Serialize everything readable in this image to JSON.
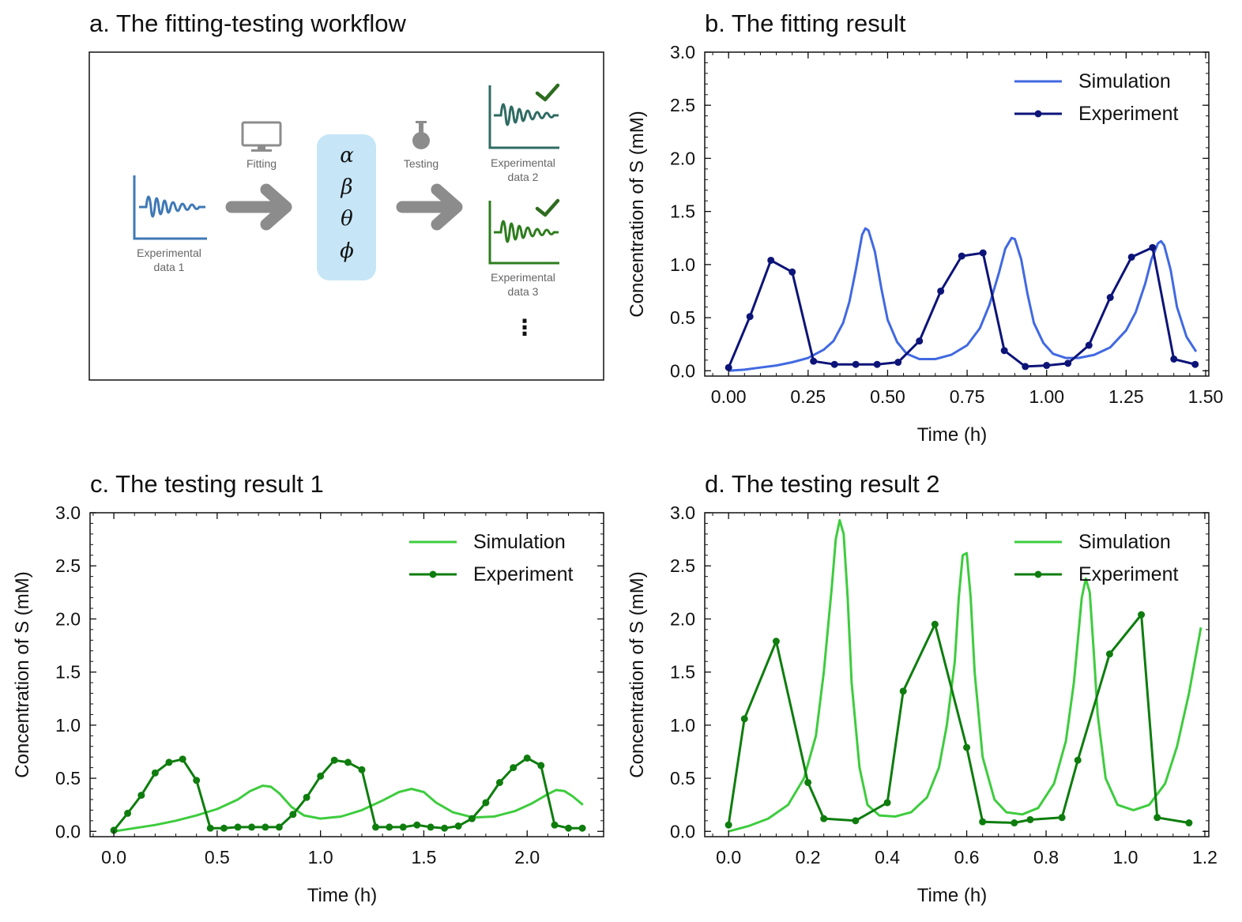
{
  "workflow": {
    "title": "a. The fitting-testing workflow",
    "fitting_label": "Fitting",
    "testing_label": "Testing",
    "data1_label": [
      "Experimental",
      "data 1"
    ],
    "data2_label": [
      "Experimental",
      "data 2"
    ],
    "data3_label": [
      "Experimental",
      "data 3"
    ],
    "params": [
      "α",
      "β",
      "θ",
      "ϕ"
    ],
    "ellipsis": "⋮",
    "icons": [
      "monitor-icon",
      "flask-icon",
      "arrow-icon",
      "checkmark-icon",
      "waveform-icon"
    ],
    "colors": {
      "param_box": "#c6e6f7",
      "arrow": "#8c8c8c",
      "data1": "#3f78b5",
      "data2": "#2f6b63",
      "data3": "#2e7d1e",
      "check": "#2e6b1f"
    }
  },
  "chart_data": [
    {
      "id": "b",
      "type": "line",
      "title": "b. The fitting result",
      "xlabel": "Time (h)",
      "ylabel": "Concentration of S (mM)",
      "xlim": [
        -0.075,
        1.51
      ],
      "ylim": [
        -0.05,
        3.0
      ],
      "xticks": [
        0.0,
        0.25,
        0.5,
        0.75,
        1.0,
        1.25,
        1.5
      ],
      "xtick_labels": [
        "0.00",
        "0.25",
        "0.50",
        "0.75",
        "1.00",
        "1.25",
        "1.50"
      ],
      "yticks": [
        0.0,
        0.5,
        1.0,
        1.5,
        2.0,
        2.5,
        3.0
      ],
      "ytick_labels": [
        "0.0",
        "0.5",
        "1.0",
        "1.5",
        "2.0",
        "2.5",
        "3.0"
      ],
      "legend_position": "top-right",
      "series": [
        {
          "name": "Simulation",
          "color": "#4169e1",
          "marker": false,
          "x": [
            0.0,
            0.05,
            0.1,
            0.15,
            0.2,
            0.25,
            0.3,
            0.33,
            0.36,
            0.38,
            0.4,
            0.42,
            0.43,
            0.44,
            0.46,
            0.48,
            0.5,
            0.53,
            0.56,
            0.6,
            0.65,
            0.7,
            0.75,
            0.79,
            0.82,
            0.85,
            0.87,
            0.89,
            0.9,
            0.92,
            0.94,
            0.96,
            0.99,
            1.02,
            1.06,
            1.1,
            1.15,
            1.2,
            1.25,
            1.28,
            1.31,
            1.33,
            1.35,
            1.36,
            1.37,
            1.39,
            1.41,
            1.44,
            1.47
          ],
          "y": [
            0.0,
            0.01,
            0.03,
            0.05,
            0.08,
            0.12,
            0.2,
            0.28,
            0.45,
            0.65,
            0.95,
            1.28,
            1.34,
            1.32,
            1.12,
            0.78,
            0.48,
            0.27,
            0.16,
            0.11,
            0.11,
            0.15,
            0.24,
            0.4,
            0.62,
            0.92,
            1.15,
            1.25,
            1.24,
            1.05,
            0.72,
            0.45,
            0.26,
            0.16,
            0.12,
            0.12,
            0.15,
            0.22,
            0.38,
            0.55,
            0.82,
            1.05,
            1.2,
            1.22,
            1.18,
            0.95,
            0.6,
            0.32,
            0.18
          ]
        },
        {
          "name": "Experiment",
          "color": "#0d1478",
          "marker": true,
          "x": [
            0.0,
            0.067,
            0.133,
            0.2,
            0.267,
            0.333,
            0.4,
            0.467,
            0.533,
            0.6,
            0.667,
            0.733,
            0.8,
            0.867,
            0.933,
            1.0,
            1.067,
            1.133,
            1.2,
            1.267,
            1.333,
            1.4,
            1.467
          ],
          "y": [
            0.03,
            0.51,
            1.04,
            0.93,
            0.09,
            0.06,
            0.06,
            0.06,
            0.08,
            0.28,
            0.75,
            1.08,
            1.11,
            0.19,
            0.04,
            0.05,
            0.07,
            0.24,
            0.69,
            1.07,
            1.16,
            0.11,
            0.06
          ]
        }
      ]
    },
    {
      "id": "c",
      "type": "line",
      "title": "c. The testing result 1",
      "xlabel": "Time (h)",
      "ylabel": "Concentration of S (mM)",
      "xlim": [
        -0.115,
        2.37
      ],
      "ylim": [
        -0.05,
        3.0
      ],
      "xticks": [
        0.0,
        0.5,
        1.0,
        1.5,
        2.0
      ],
      "xtick_labels": [
        "0.0",
        "0.5",
        "1.0",
        "1.5",
        "2.0"
      ],
      "yticks": [
        0.0,
        0.5,
        1.0,
        1.5,
        2.0,
        2.5,
        3.0
      ],
      "ytick_labels": [
        "0.0",
        "0.5",
        "1.0",
        "1.5",
        "2.0",
        "2.5",
        "3.0"
      ],
      "legend_position": "top-right",
      "series": [
        {
          "name": "Simulation",
          "color": "#3ecc3e",
          "marker": false,
          "x": [
            0.0,
            0.1,
            0.2,
            0.3,
            0.4,
            0.5,
            0.6,
            0.66,
            0.72,
            0.76,
            0.8,
            0.86,
            0.92,
            1.0,
            1.1,
            1.2,
            1.3,
            1.38,
            1.44,
            1.5,
            1.56,
            1.64,
            1.74,
            1.84,
            1.94,
            2.02,
            2.1,
            2.14,
            2.18,
            2.22,
            2.27
          ],
          "y": [
            0.0,
            0.03,
            0.06,
            0.1,
            0.15,
            0.21,
            0.3,
            0.38,
            0.43,
            0.42,
            0.36,
            0.23,
            0.15,
            0.12,
            0.14,
            0.2,
            0.29,
            0.37,
            0.4,
            0.37,
            0.27,
            0.18,
            0.13,
            0.14,
            0.19,
            0.26,
            0.35,
            0.39,
            0.38,
            0.33,
            0.25
          ]
        },
        {
          "name": "Experiment",
          "color": "#0e7d0e",
          "marker": true,
          "x": [
            0.0,
            0.067,
            0.133,
            0.2,
            0.267,
            0.333,
            0.4,
            0.467,
            0.533,
            0.6,
            0.667,
            0.733,
            0.8,
            0.867,
            0.933,
            1.0,
            1.067,
            1.133,
            1.2,
            1.267,
            1.333,
            1.4,
            1.467,
            1.533,
            1.6,
            1.667,
            1.733,
            1.8,
            1.867,
            1.933,
            2.0,
            2.067,
            2.133,
            2.2,
            2.267
          ],
          "y": [
            0.01,
            0.17,
            0.34,
            0.55,
            0.65,
            0.68,
            0.48,
            0.03,
            0.03,
            0.04,
            0.04,
            0.04,
            0.04,
            0.16,
            0.32,
            0.52,
            0.67,
            0.65,
            0.58,
            0.04,
            0.04,
            0.04,
            0.06,
            0.04,
            0.03,
            0.05,
            0.12,
            0.27,
            0.46,
            0.6,
            0.69,
            0.62,
            0.06,
            0.03,
            0.03
          ]
        }
      ]
    },
    {
      "id": "d",
      "type": "line",
      "title": "d. The testing result 2",
      "xlabel": "Time (h)",
      "ylabel": "Concentration of S (mM)",
      "xlim": [
        -0.06,
        1.21
      ],
      "ylim": [
        -0.05,
        3.0
      ],
      "xticks": [
        0.0,
        0.2,
        0.4,
        0.6,
        0.8,
        1.0,
        1.2
      ],
      "xtick_labels": [
        "0.0",
        "0.2",
        "0.4",
        "0.6",
        "0.8",
        "1.0",
        "1.2"
      ],
      "yticks": [
        0.0,
        0.5,
        1.0,
        1.5,
        2.0,
        2.5,
        3.0
      ],
      "ytick_labels": [
        "0.0",
        "0.5",
        "1.0",
        "1.5",
        "2.0",
        "2.5",
        "3.0"
      ],
      "legend_position": "top-right",
      "series": [
        {
          "name": "Simulation",
          "color": "#3ecc3e",
          "marker": false,
          "x": [
            0.0,
            0.05,
            0.1,
            0.15,
            0.19,
            0.22,
            0.24,
            0.26,
            0.27,
            0.28,
            0.29,
            0.3,
            0.31,
            0.33,
            0.35,
            0.38,
            0.42,
            0.46,
            0.5,
            0.53,
            0.55,
            0.57,
            0.58,
            0.59,
            0.6,
            0.61,
            0.62,
            0.64,
            0.67,
            0.7,
            0.74,
            0.78,
            0.82,
            0.85,
            0.87,
            0.88,
            0.89,
            0.9,
            0.91,
            0.92,
            0.93,
            0.95,
            0.98,
            1.02,
            1.06,
            1.1,
            1.13,
            1.16,
            1.19
          ],
          "y": [
            0.0,
            0.05,
            0.12,
            0.25,
            0.5,
            0.9,
            1.5,
            2.3,
            2.75,
            2.93,
            2.8,
            2.2,
            1.4,
            0.6,
            0.25,
            0.15,
            0.14,
            0.18,
            0.32,
            0.6,
            1.0,
            1.6,
            2.2,
            2.6,
            2.62,
            2.2,
            1.5,
            0.7,
            0.3,
            0.18,
            0.16,
            0.22,
            0.45,
            0.85,
            1.4,
            1.8,
            2.2,
            2.38,
            2.25,
            1.7,
            1.1,
            0.5,
            0.25,
            0.2,
            0.25,
            0.45,
            0.8,
            1.3,
            1.92
          ]
        },
        {
          "name": "Experiment",
          "color": "#0e7d0e",
          "marker": true,
          "x": [
            0.0,
            0.04,
            0.12,
            0.2,
            0.24,
            0.32,
            0.4,
            0.44,
            0.52,
            0.6,
            0.64,
            0.72,
            0.76,
            0.84,
            0.88,
            0.96,
            1.04,
            1.08,
            1.16
          ],
          "y": [
            0.06,
            1.06,
            1.79,
            0.46,
            0.12,
            0.1,
            0.27,
            1.32,
            1.95,
            0.79,
            0.09,
            0.08,
            0.11,
            0.13,
            0.67,
            1.67,
            2.04,
            0.13,
            0.08
          ]
        }
      ]
    }
  ]
}
